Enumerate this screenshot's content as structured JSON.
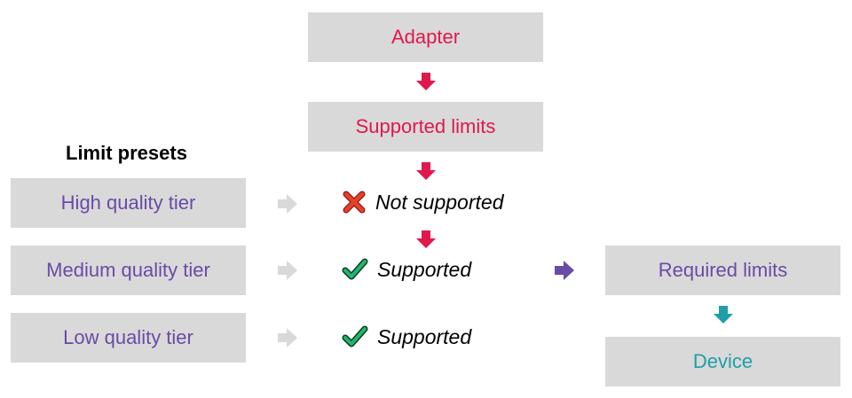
{
  "flow": {
    "adapter": "Adapter",
    "supported_limits": "Supported limits",
    "required_limits": "Required limits",
    "device": "Device"
  },
  "presets": {
    "heading": "Limit presets",
    "tiers": [
      "High quality tier",
      "Medium quality tier",
      "Low quality tier"
    ]
  },
  "statuses": [
    "Not supported",
    "Supported",
    "Supported"
  ],
  "colors": {
    "red": "#e0184c",
    "purple": "#6a4ba5",
    "teal": "#1f9ea8",
    "box": "#d9d9d9",
    "grey_arrow": "#d9d9d9",
    "check": "#22b573",
    "cross": "#e8402a"
  },
  "icons": [
    "cross-icon",
    "check-icon",
    "check-icon"
  ]
}
